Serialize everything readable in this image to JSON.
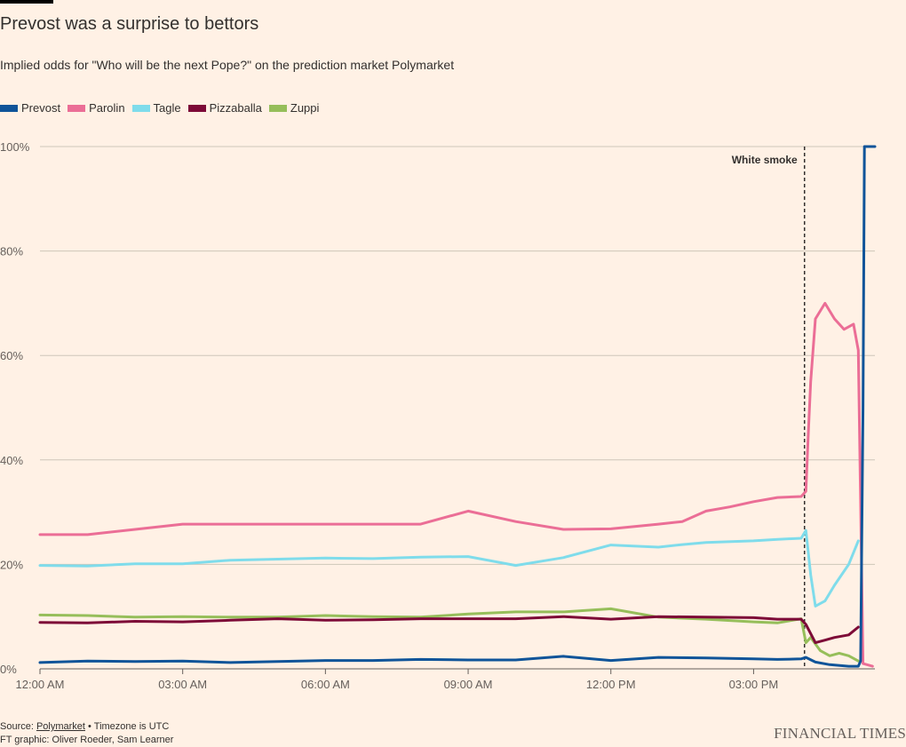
{
  "title": "Prevost was a surprise to bettors",
  "subtitle": "Implied odds for \"Who will be the next Pope?\" on the prediction market Polymarket",
  "source": {
    "prefix": "Source: ",
    "link": "Polymarket",
    "suffix": " • Timezone is UTC",
    "credit": "FT graphic: Oliver Roeder, Sam Learner"
  },
  "brand": "FINANCIAL TIMES",
  "chart_data": {
    "type": "line",
    "title": "Prevost was a surprise to bettors",
    "xlabel": "",
    "ylabel": "",
    "x_unit": "hours (UTC)",
    "xlim": [
      0,
      17.55
    ],
    "ylim": [
      0,
      100
    ],
    "x_ticks": [
      {
        "x": 0,
        "label": "12:00 AM"
      },
      {
        "x": 3,
        "label": "03:00 AM"
      },
      {
        "x": 6,
        "label": "06:00 AM"
      },
      {
        "x": 9,
        "label": "09:00 AM"
      },
      {
        "x": 12,
        "label": "12:00 PM"
      },
      {
        "x": 15,
        "label": "03:00 PM"
      }
    ],
    "y_ticks": [
      {
        "y": 0,
        "label": "0%"
      },
      {
        "y": 20,
        "label": "20%"
      },
      {
        "y": 40,
        "label": "40%"
      },
      {
        "y": 60,
        "label": "60%"
      },
      {
        "y": 80,
        "label": "80%"
      },
      {
        "y": 100,
        "label": "100%"
      }
    ],
    "grid": true,
    "legend_position": "top-left",
    "annotations": [
      {
        "x": 16.07,
        "label": "White smoke"
      }
    ],
    "series": [
      {
        "name": "Zuppi",
        "color": "#96BE5A",
        "points": [
          [
            0,
            10.3
          ],
          [
            1,
            10.2
          ],
          [
            2,
            9.9
          ],
          [
            3,
            10
          ],
          [
            4,
            9.9
          ],
          [
            5,
            9.9
          ],
          [
            6,
            10.2
          ],
          [
            7,
            10
          ],
          [
            8,
            9.9
          ],
          [
            9,
            10.5
          ],
          [
            10,
            10.9
          ],
          [
            11,
            10.9
          ],
          [
            12,
            11.5
          ],
          [
            13,
            9.9
          ],
          [
            14,
            9.5
          ],
          [
            15,
            9
          ],
          [
            15.5,
            8.8
          ],
          [
            16,
            9.6
          ],
          [
            16.1,
            5
          ],
          [
            16.2,
            6
          ],
          [
            16.4,
            3.5
          ],
          [
            16.6,
            2.5
          ],
          [
            16.8,
            3
          ],
          [
            17,
            2.5
          ],
          [
            17.2,
            1.5
          ]
        ]
      },
      {
        "name": "Pizzaballa",
        "color": "#7D0A37",
        "points": [
          [
            0,
            8.9
          ],
          [
            1,
            8.8
          ],
          [
            2,
            9.1
          ],
          [
            3,
            9
          ],
          [
            4,
            9.3
          ],
          [
            5,
            9.6
          ],
          [
            6,
            9.3
          ],
          [
            7,
            9.4
          ],
          [
            8,
            9.6
          ],
          [
            9,
            9.6
          ],
          [
            10,
            9.6
          ],
          [
            11,
            10
          ],
          [
            12,
            9.5
          ],
          [
            13,
            10
          ],
          [
            14,
            9.9
          ],
          [
            15,
            9.8
          ],
          [
            15.5,
            9.5
          ],
          [
            16,
            9.5
          ],
          [
            16.1,
            8.5
          ],
          [
            16.3,
            5
          ],
          [
            16.5,
            5.5
          ],
          [
            16.7,
            6
          ],
          [
            17,
            6.5
          ],
          [
            17.2,
            8
          ]
        ]
      },
      {
        "name": "Tagle",
        "color": "#7FDCEB",
        "points": [
          [
            0,
            19.8
          ],
          [
            1,
            19.7
          ],
          [
            2,
            20.1
          ],
          [
            3,
            20.1
          ],
          [
            4,
            20.8
          ],
          [
            5,
            21
          ],
          [
            6,
            21.2
          ],
          [
            7,
            21.1
          ],
          [
            8,
            21.4
          ],
          [
            9,
            21.5
          ],
          [
            10,
            19.8
          ],
          [
            11,
            21.3
          ],
          [
            12,
            23.7
          ],
          [
            13,
            23.3
          ],
          [
            13.5,
            23.8
          ],
          [
            14,
            24.2
          ],
          [
            15,
            24.5
          ],
          [
            15.5,
            24.8
          ],
          [
            16,
            25
          ],
          [
            16.1,
            26.5
          ],
          [
            16.2,
            18
          ],
          [
            16.3,
            12
          ],
          [
            16.5,
            13
          ],
          [
            16.7,
            16
          ],
          [
            17,
            20
          ],
          [
            17.2,
            24.5
          ]
        ]
      },
      {
        "name": "Parolin",
        "color": "#EB6E96",
        "points": [
          [
            0,
            25.7
          ],
          [
            1,
            25.7
          ],
          [
            2,
            26.7
          ],
          [
            3,
            27.7
          ],
          [
            4,
            27.7
          ],
          [
            5,
            27.7
          ],
          [
            6,
            27.7
          ],
          [
            7,
            27.7
          ],
          [
            8,
            27.7
          ],
          [
            9,
            30.2
          ],
          [
            10,
            28.2
          ],
          [
            11,
            26.7
          ],
          [
            12,
            26.8
          ],
          [
            13,
            27.7
          ],
          [
            13.5,
            28.2
          ],
          [
            14,
            30.2
          ],
          [
            14.5,
            31
          ],
          [
            15,
            32
          ],
          [
            15.5,
            32.8
          ],
          [
            16,
            33
          ],
          [
            16.1,
            34
          ],
          [
            16.15,
            45
          ],
          [
            16.2,
            55
          ],
          [
            16.3,
            67
          ],
          [
            16.5,
            70
          ],
          [
            16.7,
            67
          ],
          [
            16.9,
            65
          ],
          [
            17.1,
            66
          ],
          [
            17.2,
            61
          ],
          [
            17.3,
            1
          ],
          [
            17.5,
            0.5
          ]
        ]
      },
      {
        "name": "Prevost",
        "color": "#0F5499",
        "points": [
          [
            0,
            1.2
          ],
          [
            1,
            1.5
          ],
          [
            2,
            1.4
          ],
          [
            3,
            1.5
          ],
          [
            4,
            1.2
          ],
          [
            5,
            1.4
          ],
          [
            6,
            1.6
          ],
          [
            7,
            1.6
          ],
          [
            8,
            1.8
          ],
          [
            9,
            1.7
          ],
          [
            10,
            1.7
          ],
          [
            11,
            2.4
          ],
          [
            12,
            1.6
          ],
          [
            13,
            2.2
          ],
          [
            14,
            2.1
          ],
          [
            15,
            1.9
          ],
          [
            15.5,
            1.8
          ],
          [
            16,
            1.9
          ],
          [
            16.1,
            2.2
          ],
          [
            16.3,
            1.3
          ],
          [
            16.6,
            0.8
          ],
          [
            17,
            0.5
          ],
          [
            17.2,
            0.5
          ],
          [
            17.25,
            1.5
          ],
          [
            17.3,
            50
          ],
          [
            17.33,
            100
          ],
          [
            17.55,
            100
          ]
        ]
      }
    ]
  }
}
